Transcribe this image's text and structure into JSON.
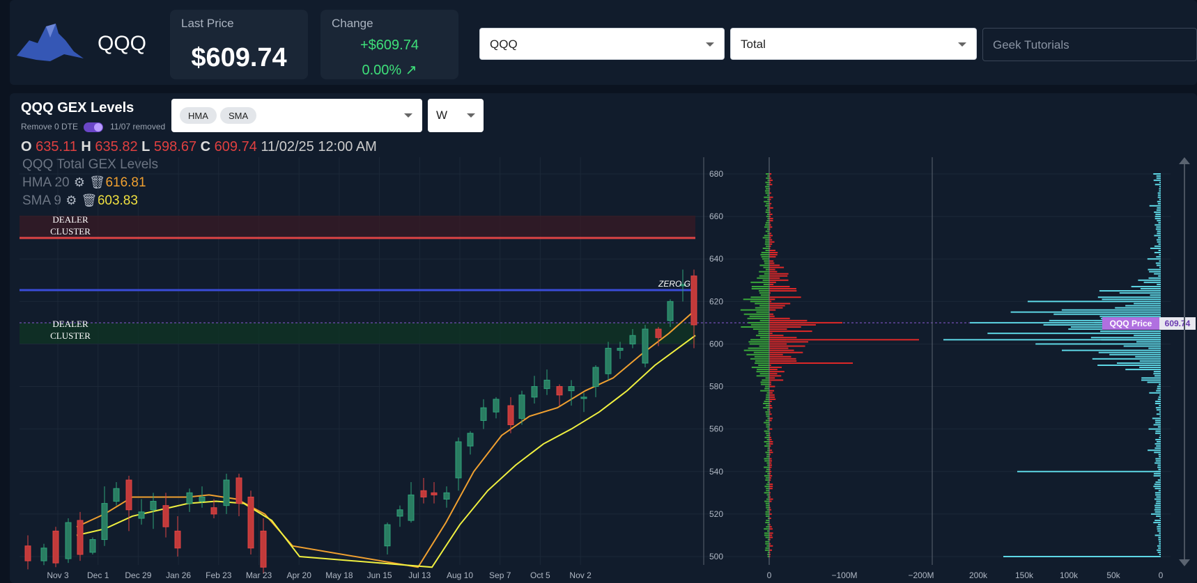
{
  "header": {
    "ticker": "QQQ",
    "last_price_label": "Last Price",
    "last_price": "$609.74",
    "change_label": "Change",
    "change_value": "+$609.74",
    "change_pct": "0.00%",
    "symbol_select": "QQQ",
    "type_select": "Total",
    "tutorials": "Geek Tutorials"
  },
  "panel": {
    "title": "QQQ GEX Levels",
    "remove_label": "Remove 0 DTE",
    "removed_date": "11/07 removed",
    "chips": [
      "HMA",
      "SMA"
    ],
    "timeframe": "W",
    "ohlc": {
      "o_label": "O",
      "o": "635.11",
      "h_label": "H",
      "h": "635.82",
      "l_label": "L",
      "l": "598.67",
      "c_label": "C",
      "c": "609.74",
      "date": "11/02/25 12:00 AM"
    },
    "legend_title": "QQQ Total GEX Levels",
    "hma_label": "HMA",
    "hma_period": "20",
    "hma_value": "616.81",
    "sma_label": "SMA",
    "sma_period": "9",
    "sma_value": "603.83"
  },
  "chart_data": {
    "type": "candlestick",
    "y_ticks": [
      "680",
      "660",
      "640",
      "620",
      "600",
      "580",
      "560",
      "540",
      "520",
      "500"
    ],
    "x_ticks": [
      "Nov 3",
      "Dec 1",
      "Dec 29",
      "Jan 26",
      "Feb 23",
      "Mar 23",
      "Apr 20",
      "May 18",
      "Jun 15",
      "Jul 13",
      "Aug 10",
      "Sep 7",
      "Oct 5",
      "Nov 2"
    ],
    "gex_ticks": [
      "0",
      "−100M",
      "−200M"
    ],
    "oi_ticks": [
      "200k",
      "150k",
      "100k",
      "50k",
      "0"
    ],
    "annotations": {
      "dealer_cluster_upper": "DEALER CLUSTER",
      "dealer_cluster_lower": "DEALER CLUSTER",
      "zero_gamma": "ZERO G",
      "price_tag_label": "QQQ Price",
      "price_tag_value": "609.74"
    },
    "levels": {
      "dealer_upper": 650,
      "zero_gamma": 625,
      "price": 609.74
    },
    "colors": {
      "up": "#2fa37a",
      "down": "#e04444",
      "hma": "#f0a030",
      "sma": "#f0f040",
      "zero_g": "#3a4cd8",
      "gex_pos": "#3aa83a",
      "gex_neg": "#e02828",
      "oi": "#5ed8e6"
    }
  }
}
